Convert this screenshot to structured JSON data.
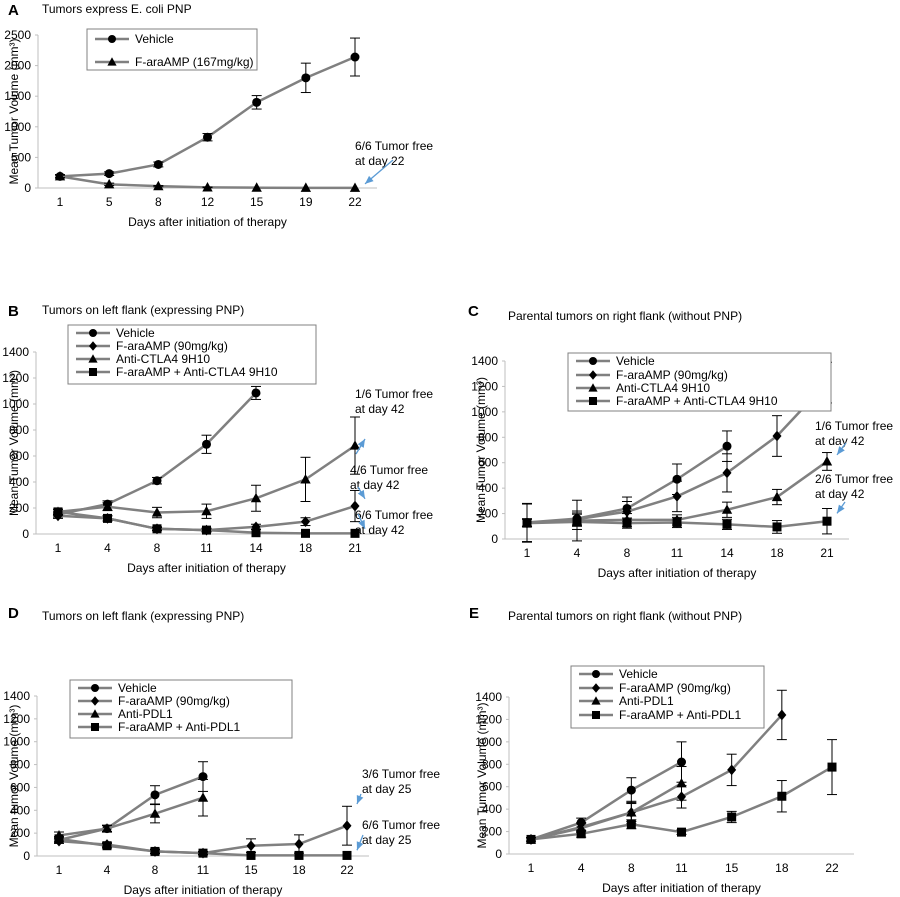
{
  "colors": {
    "axis": "#bfbfbf",
    "line": "#808080",
    "marker": "#000000",
    "arrow": "#5b9bd5"
  },
  "chart_data": [
    {
      "panel": "A",
      "type": "line",
      "title": "Tumors express E. coli PNP",
      "xlabel": "Days after initiation of therapy",
      "ylabel": "Mean Tumor Volume (mm³)",
      "categories": [
        "1",
        "5",
        "8",
        "12",
        "15",
        "19",
        "22"
      ],
      "ylim": [
        0,
        2500
      ],
      "yticks": [
        0,
        500,
        1000,
        1500,
        2000,
        2500
      ],
      "series": [
        {
          "name": "Vehicle",
          "marker": "circle",
          "values": [
            190,
            235,
            385,
            830,
            1400,
            1800,
            2140
          ],
          "errors": [
            30,
            30,
            40,
            60,
            110,
            240,
            310
          ]
        },
        {
          "name": "F-araAMP (167mg/kg)",
          "marker": "triangle",
          "values": [
            190,
            60,
            30,
            10,
            5,
            3,
            2
          ],
          "errors": [
            20,
            20,
            10,
            5,
            0,
            0,
            0
          ]
        }
      ],
      "annotations": [
        {
          "lines": [
            "6/6 Tumor free",
            "at day 22"
          ],
          "target_x": 6,
          "target_y": 2
        }
      ]
    },
    {
      "panel": "B",
      "type": "line",
      "title": "Tumors on left flank (expressing PNP)",
      "xlabel": "Days after initiation of therapy",
      "ylabel": "Mean Tumor Volume (mm³)",
      "categories": [
        "1",
        "4",
        "8",
        "11",
        "14",
        "18",
        "21"
      ],
      "ylim": [
        0,
        1400
      ],
      "yticks": [
        0,
        200,
        400,
        600,
        800,
        1000,
        1200,
        1400
      ],
      "series": [
        {
          "name": "Vehicle",
          "marker": "circle",
          "values": [
            150,
            230,
            410,
            690,
            1085,
            null,
            null
          ],
          "errors": [
            20,
            25,
            25,
            70,
            50,
            null,
            null
          ]
        },
        {
          "name": "F-araAMP (90mg/kg)",
          "marker": "diamond",
          "values": [
            140,
            120,
            40,
            30,
            55,
            95,
            215
          ],
          "errors": [
            20,
            20,
            15,
            15,
            20,
            30,
            120
          ]
        },
        {
          "name": "Anti-CTLA4 9H10",
          "marker": "triangle",
          "values": [
            170,
            210,
            165,
            175,
            275,
            420,
            680
          ],
          "errors": [
            20,
            30,
            40,
            55,
            100,
            170,
            220
          ]
        },
        {
          "name": "F-araAMP + Anti-CTLA4 9H10",
          "marker": "square",
          "values": [
            170,
            120,
            40,
            30,
            10,
            5,
            5
          ],
          "errors": [
            20,
            20,
            10,
            10,
            0,
            0,
            0
          ]
        }
      ],
      "annotations": [
        {
          "lines": [
            "1/6 Tumor free",
            "at day 42"
          ],
          "target_x": 6,
          "target_y": 700
        },
        {
          "lines": [
            "4/6 Tumor free",
            "at day 42"
          ],
          "target_x": 6,
          "target_y": 240
        },
        {
          "lines": [
            "6/6 Tumor free",
            "at day 42"
          ],
          "target_x": 6,
          "target_y": 10
        }
      ]
    },
    {
      "panel": "C",
      "type": "line",
      "title": "Parental tumors on right flank (without PNP)",
      "xlabel": "Days after initiation of therapy",
      "ylabel": "Mean Tumor Volume (mm³)",
      "categories": [
        "1",
        "4",
        "8",
        "11",
        "14",
        "18",
        "21"
      ],
      "ylim": [
        0,
        1400
      ],
      "yticks": [
        0,
        200,
        400,
        600,
        800,
        1000,
        1200,
        1400
      ],
      "series": [
        {
          "name": "Vehicle",
          "marker": "circle",
          "values": [
            130,
            160,
            240,
            470,
            730,
            null,
            null
          ],
          "errors": [
            30,
            60,
            90,
            120,
            120,
            null,
            null
          ]
        },
        {
          "name": "F-araAMP (90mg/kg)",
          "marker": "diamond",
          "values": [
            125,
            155,
            215,
            335,
            520,
            810,
            1230
          ],
          "errors": [
            30,
            50,
            80,
            120,
            150,
            160,
            160
          ]
        },
        {
          "name": "Anti-CTLA4 9H10",
          "marker": "triangle",
          "values": [
            130,
            145,
            150,
            150,
            230,
            330,
            610
          ],
          "errors": [
            150,
            160,
            50,
            40,
            60,
            60,
            70
          ]
        },
        {
          "name": "F-araAMP + Anti-CTLA4 9H10",
          "marker": "square",
          "values": [
            125,
            135,
            125,
            130,
            115,
            95,
            140
          ],
          "errors": [
            150,
            60,
            40,
            40,
            40,
            50,
            100
          ]
        }
      ],
      "annotations": [
        {
          "lines": [
            "1/6 Tumor free",
            "at day 42"
          ],
          "target_x": 6,
          "target_y": 630
        },
        {
          "lines": [
            "2/6 Tumor free",
            "at day 42"
          ],
          "target_x": 6,
          "target_y": 170
        }
      ]
    },
    {
      "panel": "D",
      "type": "line",
      "title": "Tumors on left flank (expressing PNP)",
      "xlabel": "Days after initiation of therapy",
      "ylabel": "Mean tumor Volume (mm³)",
      "categories": [
        "1",
        "4",
        "8",
        "11",
        "15",
        "18",
        "22"
      ],
      "ylim": [
        0,
        1400
      ],
      "yticks": [
        0,
        200,
        400,
        600,
        800,
        1000,
        1200,
        1400
      ],
      "series": [
        {
          "name": "Vehicle",
          "marker": "circle",
          "values": [
            140,
            240,
            535,
            695,
            null,
            null,
            null
          ],
          "errors": [
            20,
            25,
            80,
            130,
            null,
            null,
            null
          ]
        },
        {
          "name": "F-araAMP (90mg/kg)",
          "marker": "diamond",
          "values": [
            130,
            100,
            40,
            25,
            90,
            105,
            265
          ],
          "errors": [
            20,
            20,
            20,
            15,
            60,
            80,
            170
          ]
        },
        {
          "name": "Anti-PDL1",
          "marker": "triangle",
          "values": [
            180,
            240,
            370,
            510,
            null,
            null,
            null
          ],
          "errors": [
            30,
            30,
            80,
            160,
            null,
            null,
            null
          ]
        },
        {
          "name": "F-araAMP + Anti-PDL1",
          "marker": "square",
          "values": [
            150,
            90,
            40,
            25,
            5,
            5,
            5
          ],
          "errors": [
            20,
            20,
            15,
            10,
            0,
            0,
            0
          ]
        }
      ],
      "annotations": [
        {
          "lines": [
            "3/6 Tumor free",
            "at day 25"
          ],
          "target_x": 6,
          "target_y": 420
        },
        {
          "lines": [
            "6/6 Tumor free",
            "at day 25"
          ],
          "target_x": 6,
          "target_y": 15
        }
      ]
    },
    {
      "panel": "E",
      "type": "line",
      "title": "Parental tumors on right flank (without PNP)",
      "xlabel": "Days after initiation of therapy",
      "ylabel": "Mean Tumor Volume (mm³)",
      "categories": [
        "1",
        "4",
        "8",
        "11",
        "15",
        "18",
        "22"
      ],
      "ylim": [
        0,
        1400
      ],
      "yticks": [
        0,
        200,
        400,
        600,
        800,
        1000,
        1200,
        1400
      ],
      "series": [
        {
          "name": "Vehicle",
          "marker": "circle",
          "values": [
            130,
            280,
            570,
            820,
            null,
            null,
            null
          ],
          "errors": [
            15,
            40,
            110,
            180,
            null,
            null,
            null
          ]
        },
        {
          "name": "F-araAMP (90mg/kg)",
          "marker": "diamond",
          "values": [
            130,
            240,
            370,
            510,
            750,
            1240,
            null
          ],
          "errors": [
            15,
            40,
            80,
            100,
            140,
            220,
            null
          ]
        },
        {
          "name": "Anti-PDL1",
          "marker": "triangle",
          "values": [
            130,
            230,
            370,
            630,
            null,
            null,
            null
          ],
          "errors": [
            15,
            40,
            100,
            150,
            null,
            null,
            null
          ]
        },
        {
          "name": "F-araAMP + Anti-PDL1",
          "marker": "square",
          "values": [
            130,
            180,
            265,
            195,
            330,
            515,
            775
          ],
          "errors": [
            15,
            30,
            40,
            20,
            50,
            140,
            245
          ]
        }
      ]
    }
  ]
}
